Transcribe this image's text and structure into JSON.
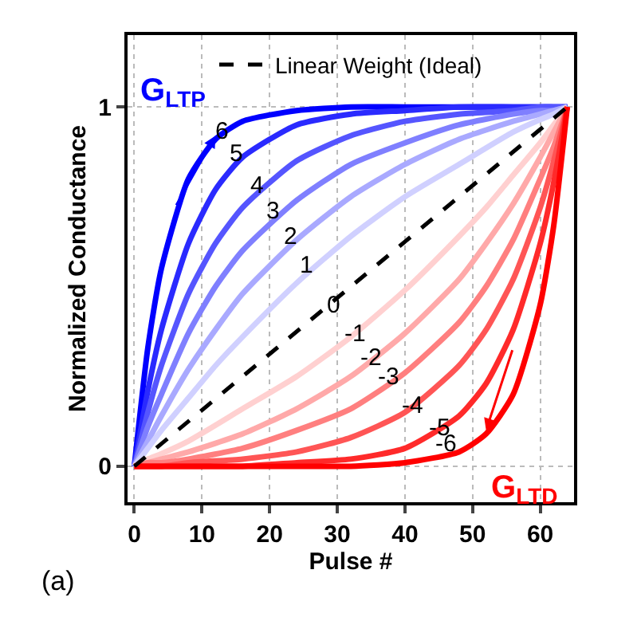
{
  "chart_data": {
    "type": "line",
    "xlabel": "Pulse #",
    "ylabel": "Normalized Conductance",
    "xlim": [
      -1,
      65
    ],
    "ylim": [
      -0.1,
      1.2
    ],
    "xticks": [
      0,
      10,
      20,
      30,
      40,
      50,
      60
    ],
    "yticks": [
      0,
      1
    ],
    "grid": true,
    "legend": "top",
    "line_style": "solid",
    "marker": "none",
    "x": [
      0,
      2,
      4,
      8,
      12,
      16,
      24,
      32,
      40,
      48,
      56,
      60,
      62,
      64
    ],
    "series": [
      {
        "name": "Linear Weight (Ideal)",
        "color": "#000000",
        "line_style": "dashed",
        "x": [
          0,
          64
        ],
        "values": [
          0,
          1
        ]
      },
      {
        "color": "#0000ff",
        "values": [
          0,
          0.33,
          0.55,
          0.8,
          0.91,
          0.96,
          0.99,
          1,
          1,
          1,
          1,
          1,
          1,
          1
        ]
      },
      {
        "color": "#2a2aff",
        "values": [
          0,
          0.21,
          0.38,
          0.62,
          0.77,
          0.86,
          0.95,
          0.98,
          0.99,
          1,
          1,
          1,
          1,
          1
        ]
      },
      {
        "color": "#5555ff",
        "values": [
          0,
          0.15,
          0.28,
          0.48,
          0.62,
          0.72,
          0.85,
          0.92,
          0.96,
          0.98,
          0.99,
          1,
          1,
          1
        ]
      },
      {
        "color": "#7f7fff",
        "values": [
          0,
          0.11,
          0.2,
          0.37,
          0.5,
          0.6,
          0.74,
          0.84,
          0.9,
          0.95,
          0.98,
          0.99,
          0.99,
          1
        ]
      },
      {
        "color": "#a9a9ff",
        "values": [
          0,
          0.07,
          0.14,
          0.27,
          0.38,
          0.48,
          0.63,
          0.75,
          0.84,
          0.91,
          0.96,
          0.98,
          0.99,
          1
        ]
      },
      {
        "color": "#d0d0ff",
        "values": [
          0,
          0.05,
          0.1,
          0.19,
          0.28,
          0.36,
          0.51,
          0.64,
          0.75,
          0.84,
          0.93,
          0.965,
          0.98,
          1
        ]
      },
      {
        "color": "#ffd0d0",
        "x": [
          0,
          2,
          4,
          8,
          16,
          24,
          32,
          40,
          48,
          52,
          56,
          60,
          62,
          64
        ],
        "values": [
          0,
          0.02,
          0.035,
          0.07,
          0.16,
          0.25,
          0.36,
          0.49,
          0.64,
          0.72,
          0.81,
          0.9,
          0.95,
          1
        ]
      },
      {
        "color": "#ffa9a9",
        "x": [
          0,
          2,
          4,
          8,
          16,
          24,
          32,
          40,
          48,
          52,
          56,
          60,
          62,
          64
        ],
        "values": [
          0,
          0.01,
          0.02,
          0.04,
          0.09,
          0.16,
          0.25,
          0.37,
          0.52,
          0.62,
          0.73,
          0.86,
          0.93,
          1
        ]
      },
      {
        "color": "#ff7f7f",
        "x": [
          0,
          2,
          4,
          8,
          16,
          24,
          32,
          40,
          48,
          52,
          56,
          60,
          62,
          64
        ],
        "values": [
          0,
          0.01,
          0.01,
          0.02,
          0.05,
          0.1,
          0.16,
          0.26,
          0.4,
          0.5,
          0.63,
          0.8,
          0.89,
          1
        ]
      },
      {
        "color": "#ff5555",
        "x": [
          0,
          2,
          4,
          8,
          16,
          24,
          32,
          40,
          48,
          52,
          56,
          60,
          62,
          64
        ],
        "values": [
          0,
          0,
          0,
          0.01,
          0.02,
          0.04,
          0.08,
          0.15,
          0.28,
          0.38,
          0.52,
          0.72,
          0.85,
          1
        ]
      },
      {
        "color": "#ff2a2a",
        "x": [
          0,
          2,
          4,
          8,
          16,
          24,
          32,
          40,
          48,
          52,
          56,
          60,
          62,
          64
        ],
        "values": [
          0,
          0,
          0,
          0,
          0,
          0.01,
          0.02,
          0.05,
          0.14,
          0.23,
          0.38,
          0.62,
          0.79,
          1
        ]
      },
      {
        "color": "#ff0000",
        "x": [
          0,
          2,
          4,
          8,
          16,
          24,
          32,
          40,
          48,
          52,
          56,
          60,
          62,
          64
        ],
        "values": [
          0,
          0,
          0,
          0,
          0,
          0,
          0,
          0.01,
          0.04,
          0.09,
          0.2,
          0.45,
          0.67,
          1
        ]
      }
    ],
    "annotations": [
      "G$_{LTP}$",
      "G$_{LTD}$",
      {
        "text": "6",
        "x": 13,
        "y": 0.93
      },
      {
        "text": "5",
        "x": 15,
        "y": 0.87
      },
      {
        "text": "4",
        "x": 18,
        "y": 0.78
      },
      {
        "text": "3",
        "x": 20.5,
        "y": 0.71
      },
      {
        "text": "2",
        "x": 23,
        "y": 0.64
      },
      {
        "text": "1",
        "x": 25.5,
        "y": 0.56
      },
      {
        "text": "0",
        "x": 29.5,
        "y": 0.45
      },
      {
        "text": "-1",
        "x": 32.5,
        "y": 0.37
      },
      {
        "text": "-2",
        "x": 35,
        "y": 0.3
      },
      {
        "text": "-3",
        "x": 37.5,
        "y": 0.25
      },
      {
        "text": "-4",
        "x": 41,
        "y": 0.17
      },
      {
        "text": "-5",
        "x": 45,
        "y": 0.105
      },
      {
        "text": "-6",
        "x": 46,
        "y": 0.06
      },
      "(a)"
    ]
  }
}
